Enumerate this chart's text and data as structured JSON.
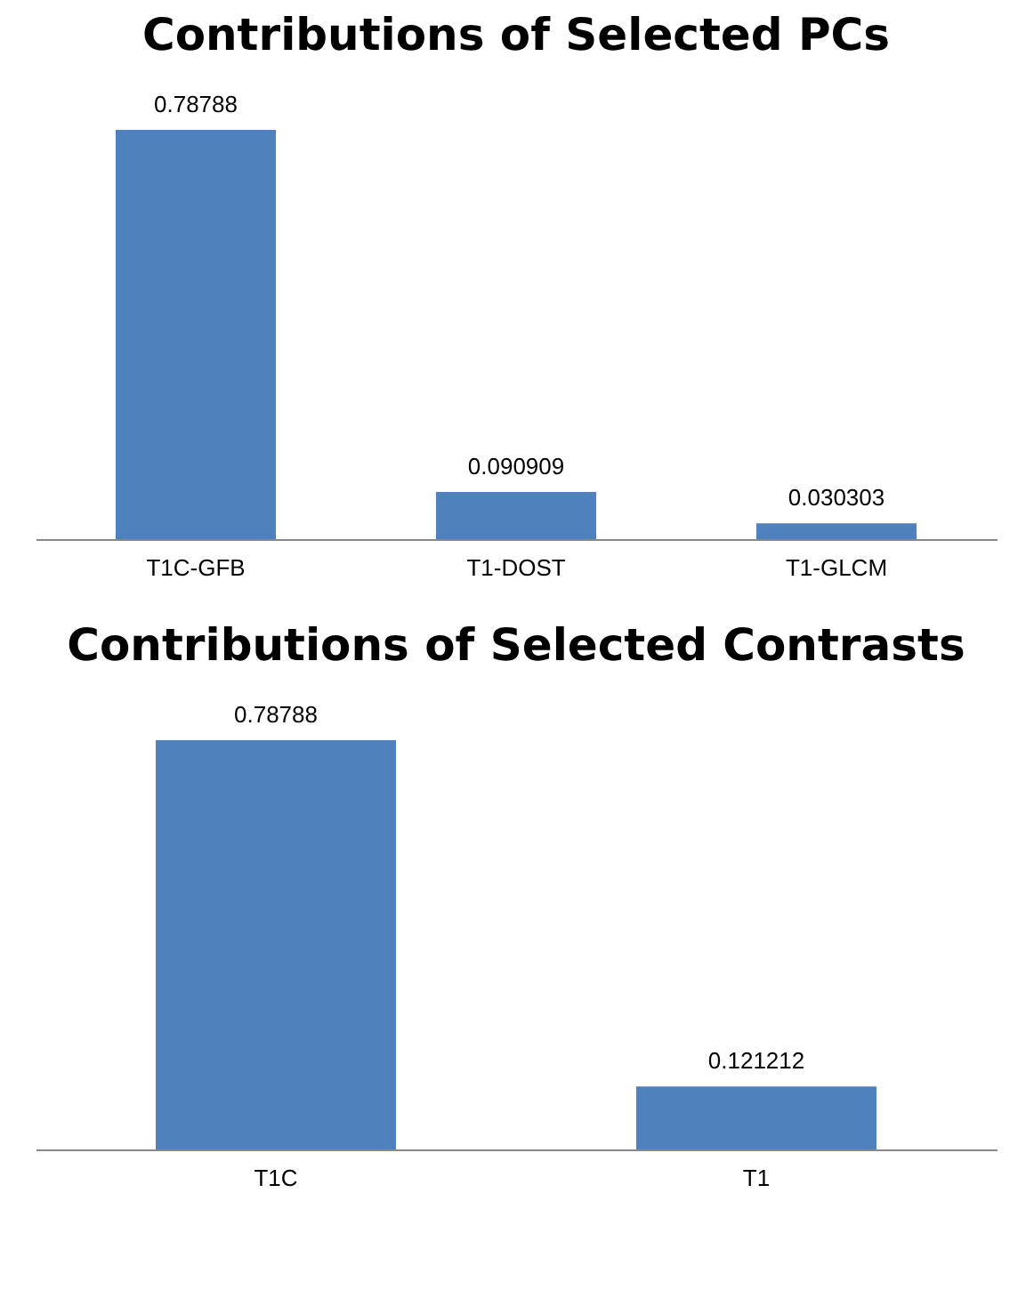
{
  "chart_data": [
    {
      "type": "bar",
      "title": "Contributions of Selected PCs",
      "categories": [
        "T1C-GFB",
        "T1-DOST",
        "T1-GLCM"
      ],
      "values": [
        0.78788,
        0.090909,
        0.030303
      ],
      "color": "#4f81bd",
      "data_labels": true
    },
    {
      "type": "bar",
      "title": "Contributions of Selected Contrasts",
      "categories": [
        "T1C",
        "T1"
      ],
      "values": [
        0.78788,
        0.121212
      ],
      "color": "#4f81bd",
      "data_labels": true
    }
  ]
}
